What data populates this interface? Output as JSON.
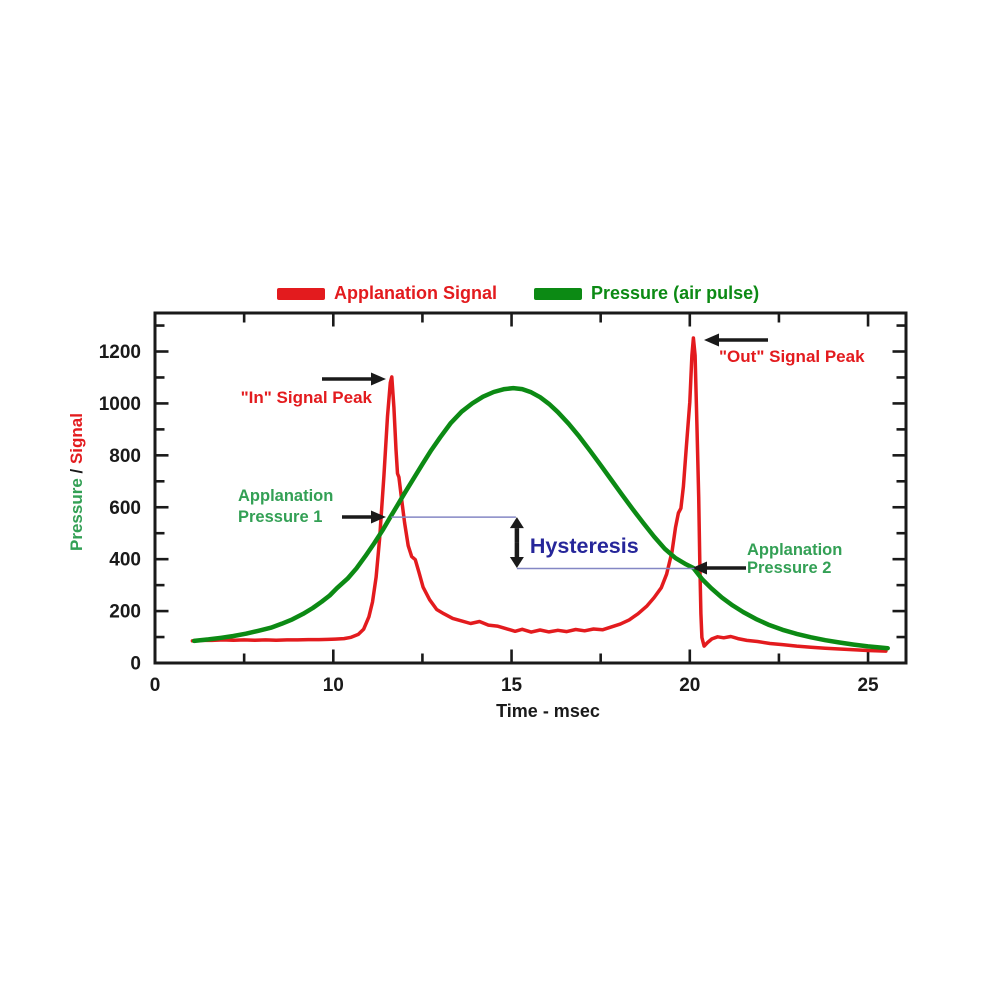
{
  "page": {
    "background": "#ffffff"
  },
  "colors": {
    "red": "#e31b1e",
    "green": "#0c8a14",
    "annotation_green": "#33a055",
    "navy": "#26269a",
    "blue_line": "#8487c4",
    "axis_black": "#1a1a1a"
  },
  "legend": {
    "items": [
      {
        "label": "Applanation Signal",
        "color": "#e31b1e"
      },
      {
        "label": "Pressure (air pulse)",
        "color": "#0c8a14"
      }
    ]
  },
  "chart_data": {
    "type": "line",
    "title": "",
    "x_axis": {
      "label": "Time - msec",
      "tick_values": [
        0,
        10,
        15,
        20,
        25
      ],
      "tick_labels": [
        "0",
        "10",
        "15",
        "20",
        "25"
      ],
      "minor_ticks": [
        5,
        12.5,
        17.5,
        22.5
      ],
      "note": "ticks evenly spaced every half-interval; 0-10 span occupies same width as 10-15, 15-20, 20-25 spans"
    },
    "y_axis": {
      "label": "Pressure / Signal",
      "label_parts": [
        {
          "text": "Pressure",
          "color": "#33a055"
        },
        {
          "text": " / ",
          "color": "#1a1a1a"
        },
        {
          "text": "Signal",
          "color": "#e31b1e"
        }
      ],
      "range": [
        0,
        1348
      ],
      "major_tick_step": 200,
      "minor_tick_step": 100,
      "tick_labels": [
        "0",
        "200",
        "400",
        "600",
        "800",
        "1000",
        "1200"
      ]
    },
    "grid": false,
    "legend_position": "top",
    "series": [
      {
        "name": "Applanation Signal",
        "color": "#e31b1e",
        "points": [
          [
            2.1,
            85
          ],
          [
            2.6,
            88
          ],
          [
            3.2,
            87
          ],
          [
            3.8,
            89
          ],
          [
            4.4,
            88
          ],
          [
            5.0,
            89
          ],
          [
            5.6,
            88
          ],
          [
            6.2,
            89
          ],
          [
            6.8,
            88
          ],
          [
            7.4,
            89
          ],
          [
            8.0,
            89
          ],
          [
            8.6,
            90
          ],
          [
            9.2,
            90
          ],
          [
            9.7,
            91
          ],
          [
            10.05,
            92
          ],
          [
            10.3,
            94
          ],
          [
            10.5,
            99
          ],
          [
            10.7,
            110
          ],
          [
            10.85,
            130
          ],
          [
            11.0,
            178
          ],
          [
            11.1,
            235
          ],
          [
            11.2,
            330
          ],
          [
            11.3,
            478
          ],
          [
            11.42,
            720
          ],
          [
            11.52,
            950
          ],
          [
            11.6,
            1080
          ],
          [
            11.64,
            1102
          ],
          [
            11.7,
            985
          ],
          [
            11.76,
            822
          ],
          [
            11.8,
            730
          ],
          [
            11.84,
            716
          ],
          [
            11.92,
            628
          ],
          [
            12.0,
            540
          ],
          [
            12.1,
            452
          ],
          [
            12.2,
            410
          ],
          [
            12.3,
            398
          ],
          [
            12.4,
            350
          ],
          [
            12.52,
            292
          ],
          [
            12.7,
            244
          ],
          [
            12.9,
            206
          ],
          [
            13.1,
            190
          ],
          [
            13.35,
            172
          ],
          [
            13.6,
            162
          ],
          [
            13.85,
            152
          ],
          [
            14.1,
            160
          ],
          [
            14.35,
            146
          ],
          [
            14.6,
            142
          ],
          [
            14.85,
            132
          ],
          [
            15.1,
            122
          ],
          [
            15.3,
            130
          ],
          [
            15.55,
            119
          ],
          [
            15.8,
            127
          ],
          [
            16.05,
            120
          ],
          [
            16.3,
            126
          ],
          [
            16.55,
            121
          ],
          [
            16.8,
            129
          ],
          [
            17.05,
            124
          ],
          [
            17.3,
            131
          ],
          [
            17.55,
            128
          ],
          [
            17.8,
            139
          ],
          [
            18.05,
            150
          ],
          [
            18.3,
            166
          ],
          [
            18.55,
            190
          ],
          [
            18.8,
            220
          ],
          [
            19.0,
            252
          ],
          [
            19.2,
            290
          ],
          [
            19.35,
            342
          ],
          [
            19.5,
            428
          ],
          [
            19.6,
            522
          ],
          [
            19.68,
            578
          ],
          [
            19.75,
            596
          ],
          [
            19.82,
            680
          ],
          [
            19.9,
            825
          ],
          [
            20.0,
            1005
          ],
          [
            20.06,
            1185
          ],
          [
            20.1,
            1252
          ],
          [
            20.15,
            1185
          ],
          [
            20.2,
            920
          ],
          [
            20.25,
            640
          ],
          [
            20.28,
            390
          ],
          [
            20.31,
            190
          ],
          [
            20.34,
            98
          ],
          [
            20.4,
            65
          ],
          [
            20.5,
            79
          ],
          [
            20.62,
            93
          ],
          [
            20.78,
            101
          ],
          [
            20.95,
            97
          ],
          [
            21.15,
            102
          ],
          [
            21.35,
            94
          ],
          [
            21.6,
            87
          ],
          [
            21.9,
            83
          ],
          [
            22.25,
            75
          ],
          [
            22.6,
            71
          ],
          [
            23.0,
            65
          ],
          [
            23.4,
            61
          ],
          [
            23.8,
            57
          ],
          [
            24.2,
            54
          ],
          [
            24.6,
            51
          ],
          [
            25.0,
            48
          ],
          [
            25.5,
            46
          ]
        ]
      },
      {
        "name": "Pressure (air pulse)",
        "color": "#0c8a14",
        "points": [
          [
            2.2,
            85
          ],
          [
            3.0,
            91
          ],
          [
            3.7,
            97
          ],
          [
            4.4,
            104
          ],
          [
            5.1,
            113
          ],
          [
            5.8,
            124
          ],
          [
            6.5,
            136
          ],
          [
            7.1,
            151
          ],
          [
            7.7,
            168
          ],
          [
            8.3,
            189
          ],
          [
            8.85,
            212
          ],
          [
            9.35,
            236
          ],
          [
            9.8,
            260
          ],
          [
            10.1,
            288
          ],
          [
            10.4,
            325
          ],
          [
            10.65,
            365
          ],
          [
            10.9,
            412
          ],
          [
            11.15,
            462
          ],
          [
            11.4,
            515
          ],
          [
            11.6,
            562
          ],
          [
            11.8,
            608
          ],
          [
            12.0,
            654
          ],
          [
            12.25,
            710
          ],
          [
            12.5,
            766
          ],
          [
            12.75,
            820
          ],
          [
            13.0,
            870
          ],
          [
            13.3,
            925
          ],
          [
            13.6,
            968
          ],
          [
            13.9,
            1000
          ],
          [
            14.2,
            1026
          ],
          [
            14.5,
            1044
          ],
          [
            14.8,
            1055
          ],
          [
            15.05,
            1059
          ],
          [
            15.3,
            1055
          ],
          [
            15.55,
            1043
          ],
          [
            15.8,
            1024
          ],
          [
            16.05,
            998
          ],
          [
            16.3,
            966
          ],
          [
            16.6,
            922
          ],
          [
            16.9,
            872
          ],
          [
            17.2,
            818
          ],
          [
            17.5,
            762
          ],
          [
            17.8,
            705
          ],
          [
            18.1,
            648
          ],
          [
            18.4,
            592
          ],
          [
            18.7,
            538
          ],
          [
            19.0,
            487
          ],
          [
            19.3,
            440
          ],
          [
            19.6,
            404
          ],
          [
            19.9,
            380
          ],
          [
            20.1,
            366
          ],
          [
            20.35,
            322
          ],
          [
            20.6,
            288
          ],
          [
            20.9,
            252
          ],
          [
            21.2,
            222
          ],
          [
            21.5,
            196
          ],
          [
            21.85,
            170
          ],
          [
            22.2,
            148
          ],
          [
            22.6,
            128
          ],
          [
            23.0,
            112
          ],
          [
            23.4,
            99
          ],
          [
            23.8,
            88
          ],
          [
            24.2,
            79
          ],
          [
            24.6,
            71
          ],
          [
            25.0,
            64
          ],
          [
            25.3,
            60
          ],
          [
            25.55,
            57
          ]
        ]
      }
    ],
    "annotations": [
      {
        "id": "in-peak",
        "text": "\"In\" Signal Peak",
        "color": "#e31b1e",
        "arrow": "right",
        "target_t": 11.64,
        "target_v": 1102
      },
      {
        "id": "out-peak",
        "text": "\"Out\" Signal Peak",
        "color": "#e31b1e",
        "arrow": "left",
        "target_t": 20.1,
        "target_v": 1252
      },
      {
        "id": "applanation-1",
        "lines": [
          "Applanation",
          "Pressure 1"
        ],
        "color": "#33a055",
        "arrow": "right",
        "target_t": 11.6,
        "target_v": 562
      },
      {
        "id": "applanation-2",
        "lines": [
          "Applanation",
          "Pressure 2"
        ],
        "color": "#33a055",
        "arrow": "left",
        "target_t": 20.1,
        "target_v": 366
      },
      {
        "id": "hysteresis",
        "text": "Hysteresis",
        "color": "#26269a",
        "pressure_1": 562,
        "pressure_2": 366,
        "at_t": 15.15,
        "line_color": "#8487c4"
      }
    ]
  }
}
